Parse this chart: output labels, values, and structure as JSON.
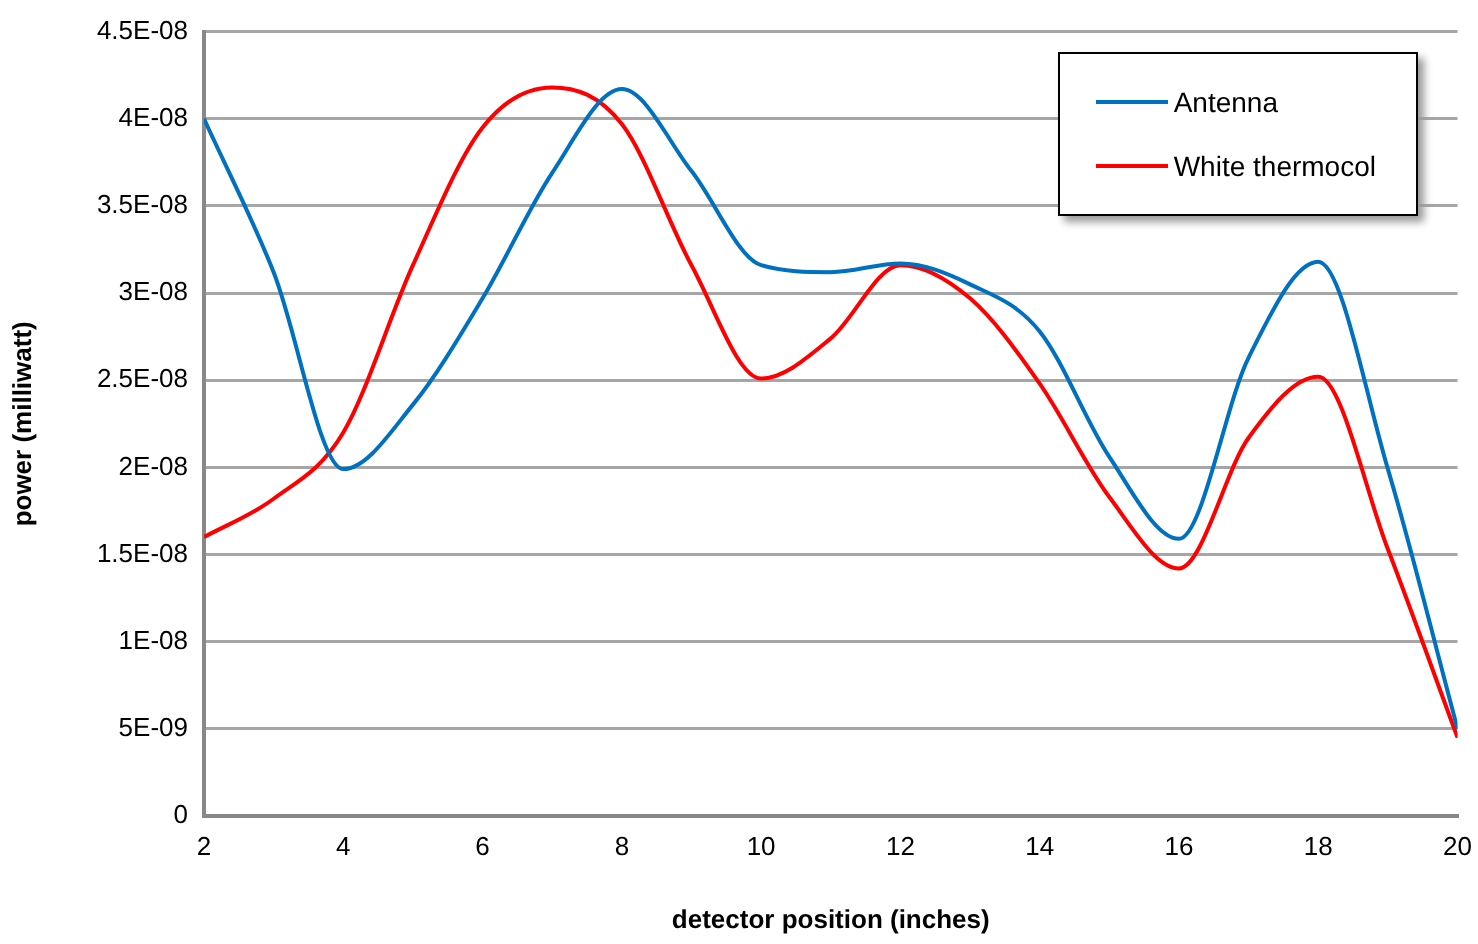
{
  "chart_data": {
    "type": "line",
    "xlabel": "detector position (inches)",
    "ylabel": "power (milliwatt)",
    "x": [
      2,
      3,
      4,
      5,
      6,
      7,
      8,
      9,
      10,
      11,
      12,
      13,
      14,
      15,
      16,
      17,
      18,
      19,
      20
    ],
    "series": [
      {
        "name": "Antenna",
        "color": "#0070c0",
        "values": [
          4e-08,
          3.12e-08,
          1.99e-08,
          2.36e-08,
          2.97e-08,
          3.69e-08,
          4.17e-08,
          3.7e-08,
          3.16e-08,
          3.12e-08,
          3.17e-08,
          3.05e-08,
          2.78e-08,
          2.06e-08,
          1.59e-08,
          2.63e-08,
          3.18e-08,
          1.99e-08,
          5e-09
        ]
      },
      {
        "name": "White thermocol",
        "color": "#ff0000",
        "values": [
          1.6e-08,
          1.82e-08,
          2.2e-08,
          3.16e-08,
          3.95e-08,
          4.18e-08,
          3.97e-08,
          3.16e-08,
          2.51e-08,
          2.74e-08,
          3.16e-08,
          2.97e-08,
          2.48e-08,
          1.83e-08,
          1.42e-08,
          2.17e-08,
          2.52e-08,
          1.53e-08,
          4.5e-09
        ]
      }
    ],
    "xlim": [
      2,
      20
    ],
    "xticks": [
      2,
      4,
      6,
      8,
      10,
      12,
      14,
      16,
      18,
      20
    ],
    "ylim": [
      0,
      4.5e-08
    ],
    "yticks": [
      0,
      {
        "value": 5e-09,
        "label": "5E-09"
      },
      {
        "value": 1e-08,
        "label": "1E-08"
      },
      {
        "value": 1.5e-08,
        "label": "1.5E-08"
      },
      {
        "value": 2e-08,
        "label": "2E-08"
      },
      {
        "value": 2.5e-08,
        "label": "2.5E-08"
      },
      {
        "value": 3e-08,
        "label": "3E-08"
      },
      {
        "value": 3.5e-08,
        "label": "3.5E-08"
      },
      {
        "value": 4e-08,
        "label": "4E-08"
      },
      {
        "value": 4.5e-08,
        "label": "4.5E-08"
      }
    ],
    "grid": "y",
    "legend": "top right",
    "marker": "none",
    "line_style": "solid"
  }
}
